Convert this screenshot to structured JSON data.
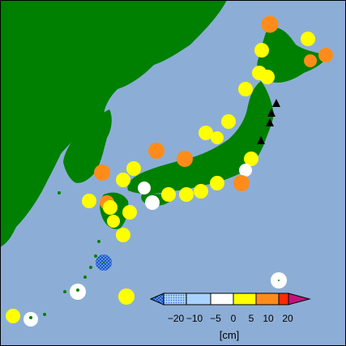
{
  "map": {
    "colors": {
      "sea": "#8caed6",
      "land": "#008000",
      "frame": "#000000",
      "markers": {
        "cross_hatch_blue": "#3a6fd8",
        "light_blue": "#6aa9ff",
        "white": "#ffffff",
        "yellow": "#ffff00",
        "orange": "#ff8c1a",
        "red": "#ff2a00",
        "magenta": "#c0147a",
        "triangle": "#000000"
      }
    },
    "legend": {
      "ticks": [
        "−20",
        "−10",
        "−5",
        "0",
        "5",
        "10",
        "20"
      ],
      "unit": "[cm]",
      "bins": [
        {
          "range": "< −20",
          "color": "#3a6fd8",
          "pattern": "cross-hatch"
        },
        {
          "range": "−20 to −10",
          "color": "#6aa9ff",
          "pattern": "dots"
        },
        {
          "range": "−10 to −5",
          "color": "#a9d3ff",
          "pattern": "solid"
        },
        {
          "range": "−5 to 0",
          "color": "#ffffff",
          "pattern": "solid"
        },
        {
          "range": "0 to 5",
          "color": "#ffff00",
          "pattern": "solid"
        },
        {
          "range": "5 to 10",
          "color": "#ffd000",
          "pattern": "solid"
        },
        {
          "range": "10 to 20",
          "color": "#ff8c1a",
          "pattern": "solid"
        },
        {
          "range": "> 20",
          "color": "#c0147a",
          "pattern": "solid"
        }
      ]
    }
  }
}
